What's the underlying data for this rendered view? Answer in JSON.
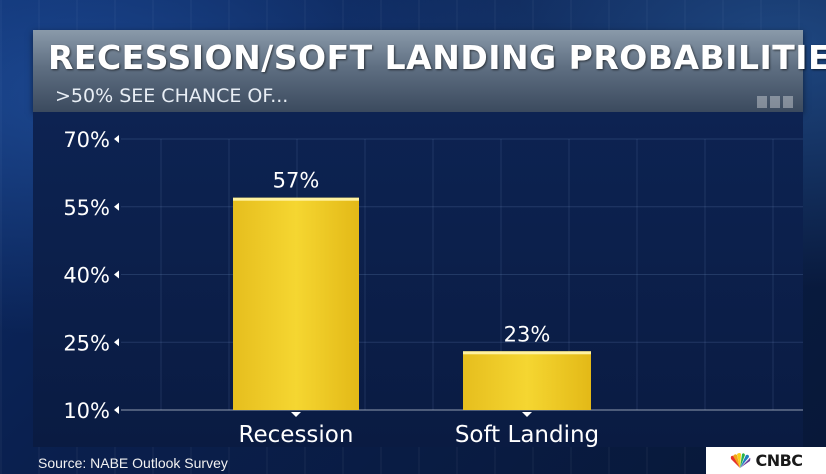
{
  "header": {
    "title": "RECESSION/SOFT LANDING PROBABILITIES",
    "subtitle": ">50% SEE CHANCE OF..."
  },
  "footer": {
    "source": "Source: NABE Outlook Survey",
    "logo_text": "CNBC",
    "logo_icon": "peacock-icon"
  },
  "colors": {
    "bar": "#f5d631",
    "text": "#ffffff",
    "panel": "#0b1e48"
  },
  "chart_data": {
    "type": "bar",
    "title": "RECESSION/SOFT LANDING PROBABILITIES",
    "subtitle": ">50% SEE CHANCE OF...",
    "categories": [
      "Recession",
      "Soft Landing"
    ],
    "values": [
      57,
      23
    ],
    "data_labels": [
      "57%",
      "23%"
    ],
    "yticks": [
      10,
      25,
      40,
      55,
      70
    ],
    "ytick_labels": [
      "10%",
      "25%",
      "40%",
      "55%",
      "70%"
    ],
    "ylim": [
      10,
      70
    ],
    "xlabel": "",
    "ylabel": "",
    "grid": true,
    "legend": "none"
  }
}
